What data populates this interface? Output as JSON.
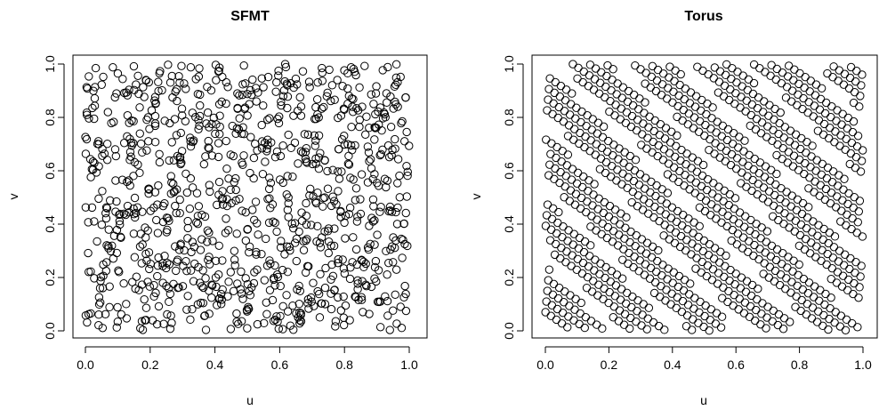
{
  "chart_data": [
    {
      "type": "scatter",
      "title": "SFMT",
      "xlabel": "u",
      "ylabel": "v",
      "xlim": [
        0,
        1
      ],
      "ylim": [
        0,
        1
      ],
      "xticks": [
        "0.0",
        "0.2",
        "0.4",
        "0.6",
        "0.8",
        "1.0"
      ],
      "yticks": [
        "0.0",
        "0.2",
        "0.4",
        "0.6",
        "0.8",
        "1.0"
      ],
      "grid": false,
      "marker": "open-circle",
      "point_count": 1000,
      "generator": "SFMT pseudo-random uniform",
      "points": []
    },
    {
      "type": "scatter",
      "title": "Torus",
      "xlabel": "u",
      "ylabel": "v",
      "xlim": [
        0,
        1
      ],
      "ylim": [
        0,
        1
      ],
      "xticks": [
        "0.0",
        "0.2",
        "0.4",
        "0.6",
        "0.8",
        "1.0"
      ],
      "yticks": [
        "0.0",
        "0.2",
        "0.4",
        "0.6",
        "0.8",
        "1.0"
      ],
      "grid": false,
      "marker": "open-circle",
      "point_count": 1000,
      "generator": "Torus (Kronecker) sequence",
      "points": []
    }
  ]
}
